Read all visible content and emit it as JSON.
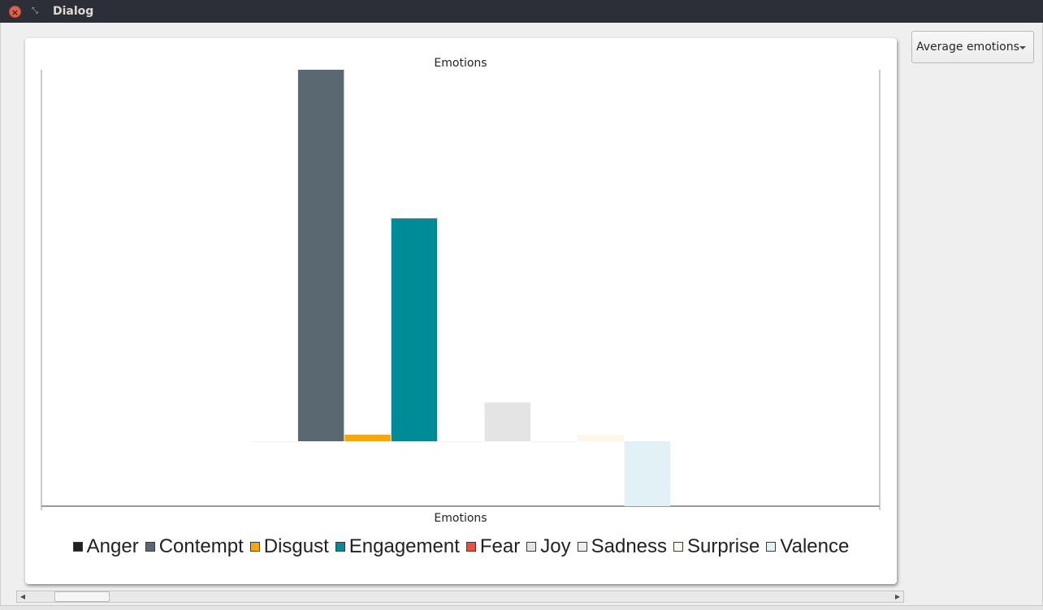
{
  "window": {
    "title": "Dialog",
    "close_glyph": "×",
    "restore_glyph": "⤡"
  },
  "dropdown": {
    "selected": "Average emotions"
  },
  "scrollbar": {
    "left_arrow": "◀",
    "right_arrow": "▶"
  },
  "chart_data": {
    "type": "bar",
    "title": "Emotions",
    "xlabel": "Emotions",
    "ylabel": "",
    "grid": false,
    "legend_position": "bottom",
    "ylim": [
      -1.17,
      6.7
    ],
    "series": [
      {
        "name": "Anger",
        "values": [
          0.0
        ],
        "color": "#222222"
      },
      {
        "name": "Contempt",
        "values": [
          6.7
        ],
        "color": "#5a6872"
      },
      {
        "name": "Disgust",
        "values": [
          0.12
        ],
        "color": "#ffa500"
      },
      {
        "name": "Engagement",
        "values": [
          4.02
        ],
        "color": "#008b99"
      },
      {
        "name": "Fear",
        "values": [
          0.0
        ],
        "color": "#f14c3c"
      },
      {
        "name": "Joy",
        "values": [
          0.7
        ],
        "color": "#e4e4e4"
      },
      {
        "name": "Sadness",
        "values": [
          0.0
        ],
        "color": "#eeeeee"
      },
      {
        "name": "Surprise",
        "values": [
          0.12
        ],
        "color": "#fef6e7"
      },
      {
        "name": "Valence",
        "values": [
          -1.17
        ],
        "color": "#e1f1f5"
      }
    ]
  }
}
